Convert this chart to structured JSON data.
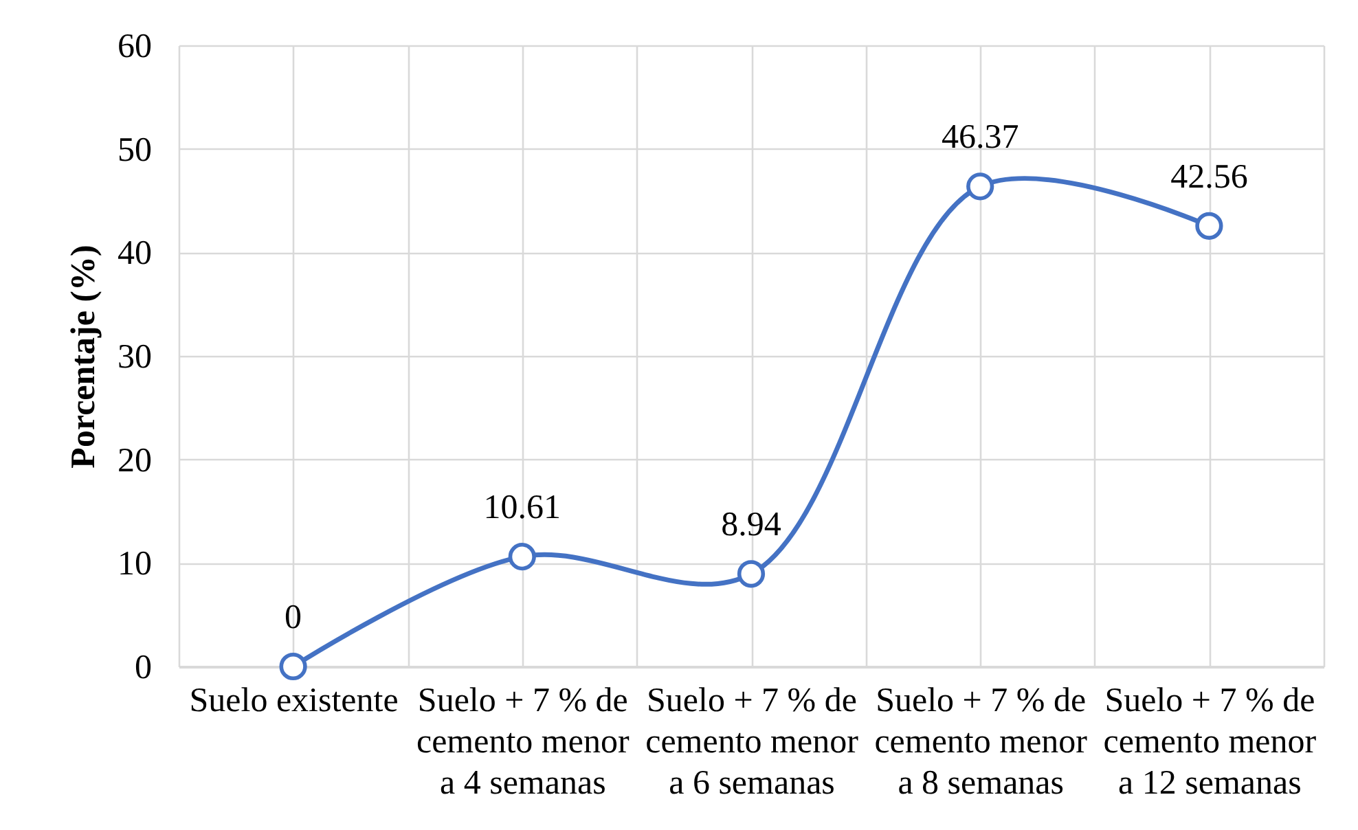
{
  "chart_data": {
    "type": "line",
    "ylabel": "Porcentaje (%)",
    "categories": [
      "Suelo existente",
      "Suelo + 7 % de cemento menor a 4 semanas",
      "Suelo + 7 % de cemento menor a 6 semanas",
      "Suelo + 7 % de cemento menor a 8 semanas",
      "Suelo + 7 % de cemento menor a 12 semanas"
    ],
    "series": [
      {
        "color": "#4472c4",
        "values": [
          0,
          10.61,
          8.94,
          46.37,
          42.56
        ]
      }
    ],
    "ylim": [
      0,
      60
    ],
    "yticks": [
      0,
      10,
      20,
      30,
      40,
      50,
      60
    ],
    "grid": true,
    "marker": "circle",
    "line_style": "solid",
    "data_labels": true
  }
}
